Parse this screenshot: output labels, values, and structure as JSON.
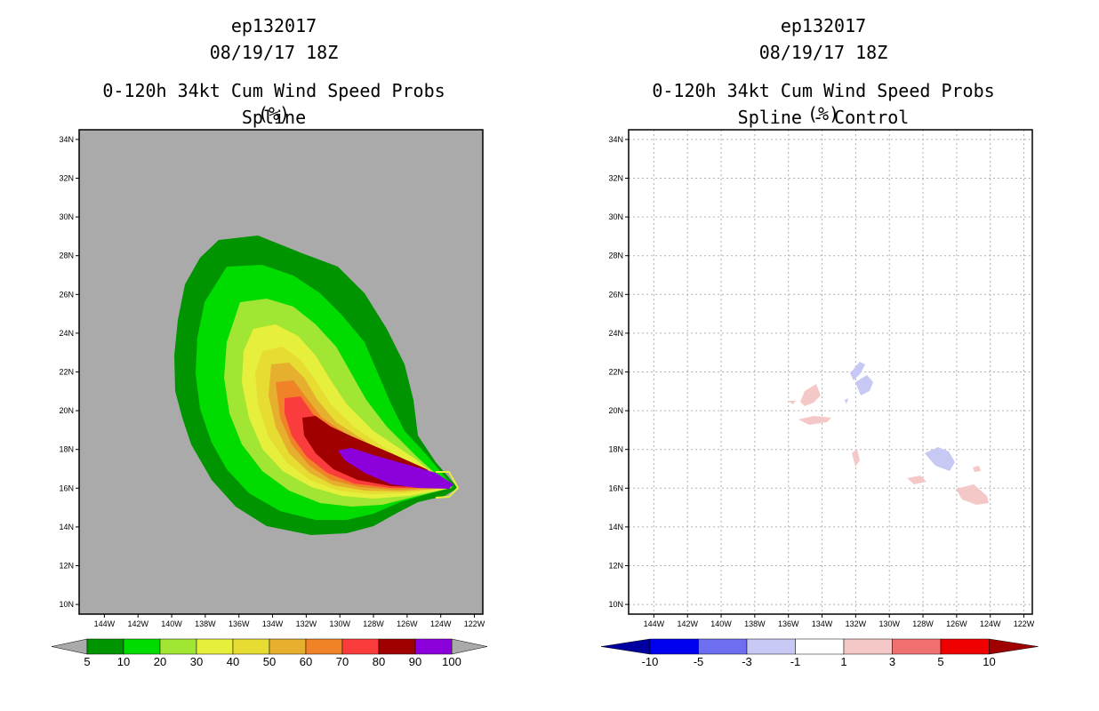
{
  "chart_data": [
    {
      "type": "filled-contour-map",
      "storm_id": "ep132017",
      "datetime": "08/19/17 18Z",
      "title": "0-120h 34kt Cum Wind Speed Probs (%)",
      "subtitle": "Spline",
      "lat_ticks": [
        "34N",
        "32N",
        "30N",
        "28N",
        "26N",
        "24N",
        "22N",
        "20N",
        "18N",
        "16N",
        "14N",
        "12N",
        "10N"
      ],
      "lon_ticks": [
        "144W",
        "142W",
        "140W",
        "138W",
        "136W",
        "134W",
        "132W",
        "130W",
        "128W",
        "126W",
        "124W",
        "122W"
      ],
      "lat_range": [
        9.5,
        34.5
      ],
      "lon_range": [
        -145.5,
        -121.5
      ],
      "grid": false,
      "colorbar": {
        "labels": [
          "5",
          "10",
          "20",
          "30",
          "40",
          "50",
          "60",
          "70",
          "80",
          "90",
          "100"
        ],
        "colors": [
          "#009400",
          "#00dc00",
          "#a0e632",
          "#e6f03c",
          "#e6dc32",
          "#e6af2d",
          "#f08228",
          "#fa3c3c",
          "#a00000",
          "#8c00dc"
        ]
      }
    },
    {
      "type": "filled-contour-map",
      "storm_id": "ep132017",
      "datetime": "08/19/17 18Z",
      "title": "0-120h 34kt Cum Wind Speed Probs (%)",
      "subtitle": "Spline - Control",
      "lat_ticks": [
        "34N",
        "32N",
        "30N",
        "28N",
        "26N",
        "24N",
        "22N",
        "20N",
        "18N",
        "16N",
        "14N",
        "12N",
        "10N"
      ],
      "lon_ticks": [
        "144W",
        "142W",
        "140W",
        "138W",
        "136W",
        "134W",
        "132W",
        "130W",
        "128W",
        "126W",
        "124W",
        "122W"
      ],
      "lat_range": [
        9.5,
        34.5
      ],
      "lon_range": [
        -145.5,
        -121.5
      ],
      "grid": true,
      "colorbar": {
        "labels": [
          "-10",
          "-5",
          "-3",
          "-1",
          "1",
          "3",
          "5",
          "10"
        ],
        "colors": [
          "#0000a0",
          "#0000f0",
          "#6e6ef0",
          "#c8c8f5",
          "#ffffff",
          "#f5c8c8",
          "#f07070",
          "#f00000",
          "#a00000"
        ]
      }
    }
  ]
}
